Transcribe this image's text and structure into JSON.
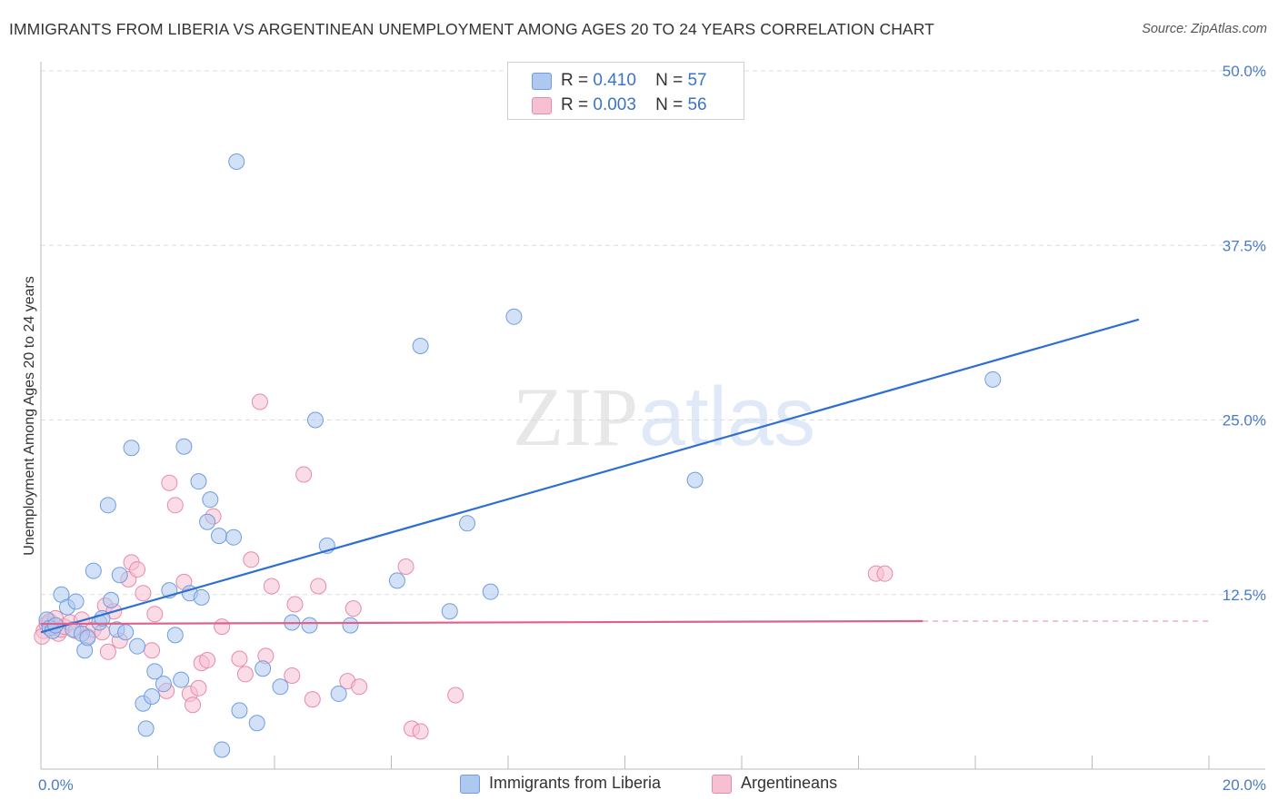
{
  "title": "IMMIGRANTS FROM LIBERIA VS ARGENTINEAN UNEMPLOYMENT AMONG AGES 20 TO 24 YEARS CORRELATION CHART",
  "source": "Source: ZipAtlas.com",
  "watermark": {
    "zip": "ZIP",
    "atlas": "atlas"
  },
  "legend": {
    "liberia": {
      "r_label": "R =",
      "r_value": "0.410",
      "n_label": "N =",
      "n_value": "57"
    },
    "argentineans": {
      "r_label": "R =",
      "r_value": "0.003",
      "n_label": "N =",
      "n_value": "56"
    }
  },
  "bottom_legend": {
    "liberia": "Immigrants from Liberia",
    "argentineans": "Argentineans"
  },
  "colors": {
    "liberia_fill": "#aec8f0",
    "liberia_stroke": "#6f9de0",
    "liberia_line": "#2d6fd0",
    "arg_fill": "#f6c0d2",
    "arg_stroke": "#e88aaa",
    "arg_line": "#e0608c",
    "grid": "#dddddd",
    "axis_text": "#4a7cc9"
  },
  "chart_data": {
    "type": "scatter",
    "title": "IMMIGRANTS FROM LIBERIA VS ARGENTINEAN UNEMPLOYMENT AMONG AGES 20 TO 24 YEARS CORRELATION CHART",
    "xlabel": "",
    "ylabel": "Unemployment Among Ages 20 to 24 years",
    "xlim": [
      0,
      20
    ],
    "ylim": [
      0,
      50
    ],
    "x_tick_labels": [
      "0.0%",
      "20.0%"
    ],
    "y_ticks": [
      12.5,
      25.0,
      37.5,
      50.0
    ],
    "y_tick_labels": [
      "12.5%",
      "25.0%",
      "37.5%",
      "50.0%"
    ],
    "series": [
      {
        "name": "Immigrants from Liberia",
        "R": 0.41,
        "N": 57,
        "trend": {
          "x": [
            0,
            18.8
          ],
          "y": [
            9.8,
            32.2
          ]
        },
        "points": [
          {
            "x": 0.1,
            "y": 10.7
          },
          {
            "x": 0.15,
            "y": 10.1
          },
          {
            "x": 0.2,
            "y": 9.9
          },
          {
            "x": 0.25,
            "y": 10.3
          },
          {
            "x": 0.35,
            "y": 12.5
          },
          {
            "x": 0.45,
            "y": 11.6
          },
          {
            "x": 0.55,
            "y": 10.0
          },
          {
            "x": 0.6,
            "y": 12.0
          },
          {
            "x": 0.7,
            "y": 9.7
          },
          {
            "x": 0.75,
            "y": 8.5
          },
          {
            "x": 0.8,
            "y": 9.4
          },
          {
            "x": 0.9,
            "y": 14.2
          },
          {
            "x": 1.0,
            "y": 10.5
          },
          {
            "x": 1.05,
            "y": 10.8
          },
          {
            "x": 1.15,
            "y": 18.9
          },
          {
            "x": 1.2,
            "y": 12.1
          },
          {
            "x": 1.3,
            "y": 10.0
          },
          {
            "x": 1.35,
            "y": 13.9
          },
          {
            "x": 1.45,
            "y": 9.8
          },
          {
            "x": 1.55,
            "y": 23.0
          },
          {
            "x": 1.65,
            "y": 8.8
          },
          {
            "x": 1.75,
            "y": 4.7
          },
          {
            "x": 1.8,
            "y": 2.9
          },
          {
            "x": 1.9,
            "y": 5.2
          },
          {
            "x": 1.95,
            "y": 7.0
          },
          {
            "x": 2.1,
            "y": 6.1
          },
          {
            "x": 2.2,
            "y": 12.8
          },
          {
            "x": 2.3,
            "y": 9.6
          },
          {
            "x": 2.4,
            "y": 6.4
          },
          {
            "x": 2.45,
            "y": 23.1
          },
          {
            "x": 2.55,
            "y": 12.6
          },
          {
            "x": 2.7,
            "y": 20.6
          },
          {
            "x": 2.75,
            "y": 12.3
          },
          {
            "x": 2.85,
            "y": 17.7
          },
          {
            "x": 2.9,
            "y": 19.3
          },
          {
            "x": 3.05,
            "y": 16.7
          },
          {
            "x": 3.1,
            "y": 1.4
          },
          {
            "x": 3.3,
            "y": 16.6
          },
          {
            "x": 3.35,
            "y": 43.5
          },
          {
            "x": 3.4,
            "y": 4.2
          },
          {
            "x": 3.7,
            "y": 3.3
          },
          {
            "x": 3.8,
            "y": 7.2
          },
          {
            "x": 4.1,
            "y": 5.9
          },
          {
            "x": 4.3,
            "y": 10.5
          },
          {
            "x": 4.6,
            "y": 10.3
          },
          {
            "x": 4.7,
            "y": 25.0
          },
          {
            "x": 4.9,
            "y": 16.0
          },
          {
            "x": 5.1,
            "y": 5.4
          },
          {
            "x": 5.3,
            "y": 10.3
          },
          {
            "x": 6.1,
            "y": 13.5
          },
          {
            "x": 6.5,
            "y": 30.3
          },
          {
            "x": 7.0,
            "y": 11.3
          },
          {
            "x": 7.3,
            "y": 17.6
          },
          {
            "x": 7.7,
            "y": 12.7
          },
          {
            "x": 8.1,
            "y": 32.4
          },
          {
            "x": 11.2,
            "y": 20.7
          },
          {
            "x": 16.3,
            "y": 27.9
          }
        ]
      },
      {
        "name": "Argentineans",
        "R": 0.003,
        "N": 56,
        "trend": {
          "x": [
            0,
            15.1
          ],
          "y": [
            10.4,
            10.6
          ]
        },
        "trend_dashed": {
          "x": [
            15.1,
            20
          ],
          "y": [
            10.6,
            10.6
          ]
        },
        "points": [
          {
            "x": 0.05,
            "y": 9.9
          },
          {
            "x": 0.1,
            "y": 10.4
          },
          {
            "x": 0.15,
            "y": 10.6
          },
          {
            "x": 0.2,
            "y": 10.1
          },
          {
            "x": 0.25,
            "y": 10.8
          },
          {
            "x": 0.3,
            "y": 9.7
          },
          {
            "x": 0.35,
            "y": 10.0
          },
          {
            "x": 0.4,
            "y": 10.2
          },
          {
            "x": 0.5,
            "y": 10.5
          },
          {
            "x": 0.6,
            "y": 9.9
          },
          {
            "x": 0.7,
            "y": 10.7
          },
          {
            "x": 0.8,
            "y": 9.5
          },
          {
            "x": 0.9,
            "y": 10.0
          },
          {
            "x": 1.05,
            "y": 9.8
          },
          {
            "x": 1.1,
            "y": 11.7
          },
          {
            "x": 1.15,
            "y": 8.4
          },
          {
            "x": 1.25,
            "y": 11.3
          },
          {
            "x": 1.35,
            "y": 9.2
          },
          {
            "x": 1.5,
            "y": 13.6
          },
          {
            "x": 1.55,
            "y": 14.8
          },
          {
            "x": 1.65,
            "y": 14.3
          },
          {
            "x": 1.75,
            "y": 12.6
          },
          {
            "x": 1.9,
            "y": 8.5
          },
          {
            "x": 1.95,
            "y": 11.1
          },
          {
            "x": 2.15,
            "y": 5.6
          },
          {
            "x": 2.2,
            "y": 20.5
          },
          {
            "x": 2.3,
            "y": 18.9
          },
          {
            "x": 2.45,
            "y": 13.4
          },
          {
            "x": 2.55,
            "y": 5.4
          },
          {
            "x": 2.6,
            "y": 4.6
          },
          {
            "x": 2.7,
            "y": 5.8
          },
          {
            "x": 2.75,
            "y": 7.6
          },
          {
            "x": 2.85,
            "y": 7.8
          },
          {
            "x": 2.95,
            "y": 18.1
          },
          {
            "x": 3.1,
            "y": 10.2
          },
          {
            "x": 3.4,
            "y": 7.9
          },
          {
            "x": 3.5,
            "y": 6.8
          },
          {
            "x": 3.6,
            "y": 15.0
          },
          {
            "x": 3.75,
            "y": 26.3
          },
          {
            "x": 3.85,
            "y": 8.1
          },
          {
            "x": 3.95,
            "y": 13.1
          },
          {
            "x": 4.3,
            "y": 6.7
          },
          {
            "x": 4.35,
            "y": 11.8
          },
          {
            "x": 4.5,
            "y": 21.1
          },
          {
            "x": 4.65,
            "y": 5.0
          },
          {
            "x": 4.75,
            "y": 13.1
          },
          {
            "x": 5.25,
            "y": 6.3
          },
          {
            "x": 5.35,
            "y": 11.5
          },
          {
            "x": 5.45,
            "y": 5.9
          },
          {
            "x": 6.25,
            "y": 14.5
          },
          {
            "x": 6.35,
            "y": 2.9
          },
          {
            "x": 6.5,
            "y": 2.7
          },
          {
            "x": 7.1,
            "y": 5.3
          },
          {
            "x": 14.3,
            "y": 14.0
          },
          {
            "x": 14.45,
            "y": 14.0
          },
          {
            "x": 0.02,
            "y": 9.5
          }
        ]
      }
    ]
  }
}
